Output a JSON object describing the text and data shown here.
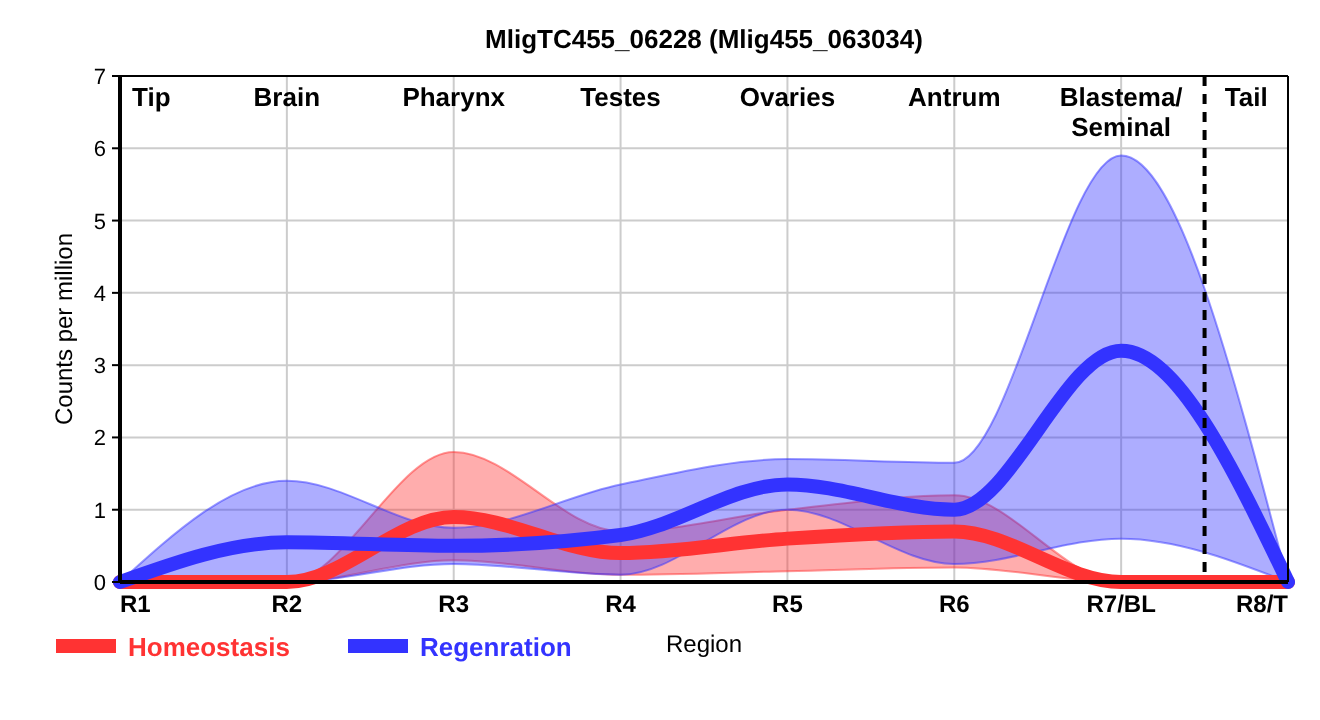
{
  "chart_data": {
    "type": "line",
    "title": "MligTC455_06228 (Mlig455_063034)",
    "xlabel": "Region",
    "ylabel": "Counts per million",
    "categories": [
      "R1",
      "R2",
      "R3",
      "R4",
      "R5",
      "R6",
      "R7/BL",
      "R8/T"
    ],
    "ylim": [
      0,
      7
    ],
    "yticks": [
      0,
      1,
      2,
      3,
      4,
      5,
      6,
      7
    ],
    "grid": true,
    "legend": "bottom left",
    "series": [
      {
        "name": "Homeostasis",
        "color": "#ff3333",
        "values": [
          0,
          0,
          0.9,
          0.4,
          0.6,
          0.7,
          0,
          0
        ],
        "lower": [
          0,
          0,
          0.3,
          0.1,
          0.15,
          0.2,
          0,
          0
        ],
        "upper": [
          0,
          0,
          1.8,
          0.7,
          1.0,
          1.2,
          0,
          0
        ]
      },
      {
        "name": "Regenration",
        "color": "#3333ff",
        "values": [
          0,
          0.55,
          0.5,
          0.65,
          1.35,
          1.0,
          3.2,
          0
        ],
        "lower": [
          0,
          0,
          0.25,
          0.1,
          1.0,
          0.25,
          0.6,
          0
        ],
        "upper": [
          0,
          1.4,
          0.75,
          1.35,
          1.7,
          1.65,
          5.9,
          0
        ]
      }
    ],
    "annotations": [
      "Tip",
      "Brain",
      "Pharynx",
      "Testes",
      "Ovaries",
      "Antrum",
      "Blastema/\nSeminal",
      "Tail"
    ]
  }
}
